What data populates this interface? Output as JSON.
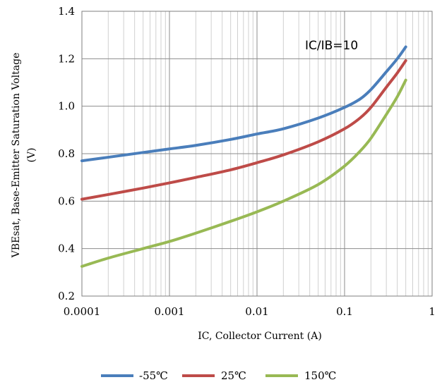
{
  "chart_data": {
    "type": "line",
    "title": "",
    "xlabel": "IC, Collector Current (A)",
    "ylabel_line1": "VBEsat, Base-Emitter Saturation Voltage",
    "ylabel_line2": "(V)",
    "x_scale": "log",
    "xlim": [
      0.0001,
      1
    ],
    "ylim": [
      0.2,
      1.4
    ],
    "x_ticks": [
      0.0001,
      0.001,
      0.01,
      0.1,
      1
    ],
    "x_tick_labels": [
      "0.0001",
      "0.001",
      "0.01",
      "0.1",
      "1"
    ],
    "y_ticks": [
      0.2,
      0.4,
      0.6,
      0.8,
      1.0,
      1.2,
      1.4
    ],
    "y_tick_labels": [
      "0.2",
      "0.4",
      "0.6",
      "0.8",
      "1.0",
      "1.2",
      "1.4"
    ],
    "grid": true,
    "legend_position": "bottom",
    "annotation": "IC/IB=10",
    "series": [
      {
        "name": "-55℃",
        "color": "#4a7ebb",
        "x": [
          0.0001,
          0.0002,
          0.0005,
          0.001,
          0.002,
          0.005,
          0.01,
          0.02,
          0.05,
          0.1,
          0.15,
          0.2,
          0.3,
          0.4,
          0.5
        ],
        "y": [
          0.77,
          0.785,
          0.805,
          0.82,
          0.835,
          0.86,
          0.883,
          0.905,
          0.95,
          0.995,
          1.03,
          1.07,
          1.145,
          1.2,
          1.25
        ]
      },
      {
        "name": "25℃",
        "color": "#be4b48",
        "x": [
          0.0001,
          0.0002,
          0.0005,
          0.001,
          0.002,
          0.005,
          0.01,
          0.02,
          0.05,
          0.1,
          0.15,
          0.2,
          0.3,
          0.4,
          0.5
        ],
        "y": [
          0.608,
          0.628,
          0.655,
          0.677,
          0.7,
          0.732,
          0.762,
          0.795,
          0.85,
          0.905,
          0.95,
          0.995,
          1.08,
          1.14,
          1.192
        ]
      },
      {
        "name": "150℃",
        "color": "#98b954",
        "x": [
          0.0001,
          0.0002,
          0.0005,
          0.001,
          0.002,
          0.005,
          0.01,
          0.02,
          0.05,
          0.1,
          0.15,
          0.2,
          0.3,
          0.4,
          0.5
        ],
        "y": [
          0.325,
          0.36,
          0.4,
          0.43,
          0.465,
          0.515,
          0.555,
          0.6,
          0.67,
          0.748,
          0.81,
          0.865,
          0.965,
          1.04,
          1.11
        ]
      }
    ]
  }
}
